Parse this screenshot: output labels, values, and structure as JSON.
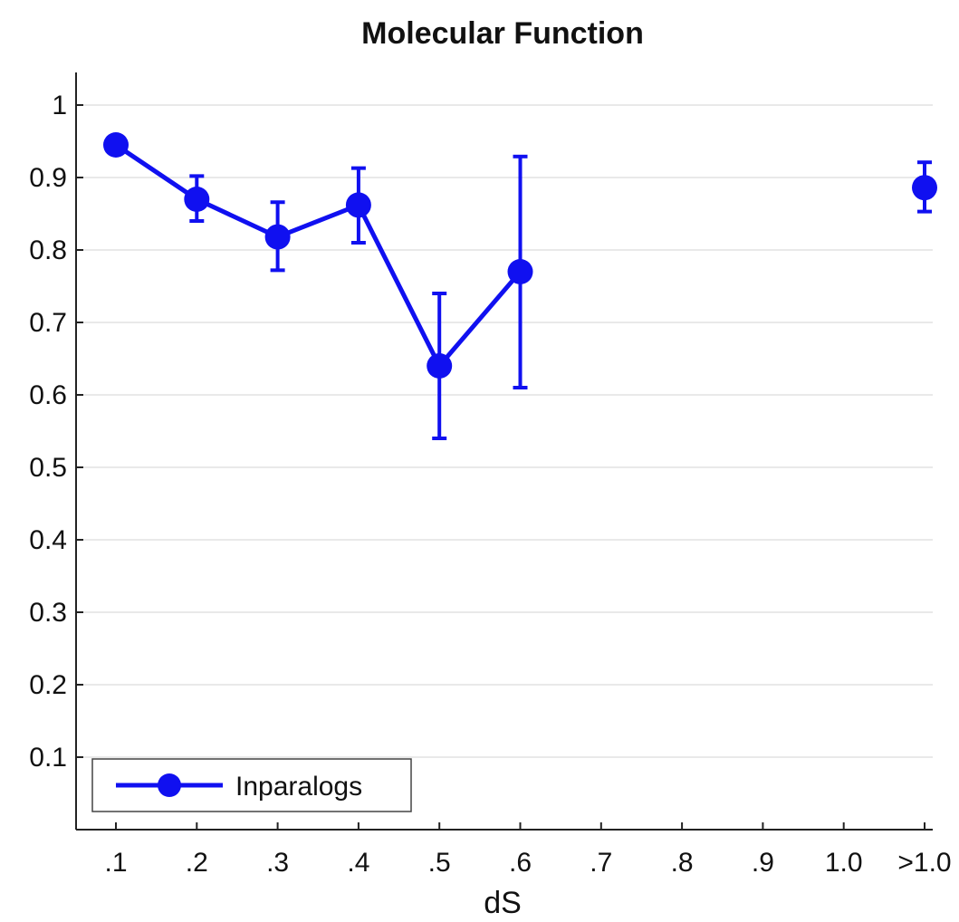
{
  "chart_data": {
    "type": "line",
    "title": "Molecular Function",
    "xlabel": "dS",
    "ylabel": "",
    "categories": [
      ".1",
      ".2",
      ".3",
      ".4",
      ".5",
      ".6",
      ".7",
      ".8",
      ".9",
      "1.0",
      ">1.0"
    ],
    "ylim": [
      0,
      1.05
    ],
    "yticks": [
      "0.1",
      "0.2",
      "0.3",
      "0.4",
      "0.5",
      "0.6",
      "0.7",
      "0.8",
      "0.9",
      "1"
    ],
    "grid": "horizontal",
    "legend_position": "bottom-left",
    "series": [
      {
        "name": "Inparalogs",
        "color": "#1010f0",
        "marker": "circle",
        "values": [
          0.945,
          0.87,
          0.818,
          0.862,
          0.64,
          0.77,
          null,
          null,
          null,
          null,
          0.886
        ],
        "error_low": [
          null,
          0.84,
          0.772,
          0.81,
          0.54,
          0.61,
          null,
          null,
          null,
          null,
          0.853
        ],
        "error_high": [
          null,
          0.902,
          0.866,
          0.913,
          0.74,
          0.929,
          null,
          null,
          null,
          null,
          0.921
        ]
      }
    ]
  }
}
